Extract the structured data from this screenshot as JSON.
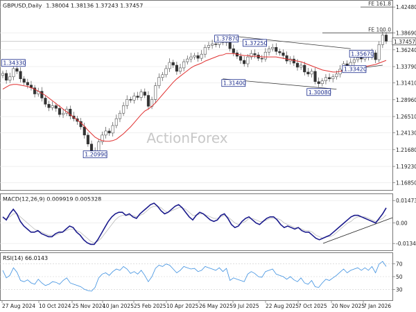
{
  "chart_data": [
    {
      "type": "candlestick",
      "title": "GBPUSD,Daily",
      "ohlc": "1.38004 1.38136 1.37243 1.37457",
      "watermark": "ActionForex",
      "yticks": [
        "1.42480",
        "1.38690",
        "1.36240",
        "1.33790",
        "1.31410",
        "1.28960",
        "1.26510",
        "1.24130",
        "1.21680",
        "1.19230",
        "1.16850"
      ],
      "last_price": "1.37457",
      "fib_labels": [
        {
          "text": "FE 161.8",
          "value": 1.4248
        },
        {
          "text": "FE 100.0",
          "value": 1.3869
        }
      ],
      "xticks": [
        "27 Aug 2024",
        "10 Oct 2024",
        "25 Nov 2024",
        "10 Jan 2025",
        "25 Feb 2025",
        "10 Apr 2025",
        "26 May 2025",
        "9 Jul 2025",
        "22 Aug 2025",
        "7 Oct 2025",
        "20 Nov 2025",
        "7 Jan 2026"
      ],
      "price_labels": [
        {
          "text": "1.34330",
          "value": 1.3433
        },
        {
          "text": "1.20990",
          "value": 1.2099
        },
        {
          "text": "1.37870",
          "value": 1.3787
        },
        {
          "text": "1.37250",
          "value": 1.3725
        },
        {
          "text": "1.31400",
          "value": 1.314
        },
        {
          "text": "1.30080",
          "value": 1.3008
        },
        {
          "text": "1.35670",
          "value": 1.3567
        },
        {
          "text": "1.33420",
          "value": 1.3342
        }
      ],
      "ylim": [
        1.16,
        1.432
      ],
      "series": [
        {
          "name": "close",
          "values": [
            1.328,
            1.318,
            1.323,
            1.335,
            1.331,
            1.32,
            1.315,
            1.311,
            1.307,
            1.298,
            1.302,
            1.292,
            1.283,
            1.278,
            1.281,
            1.277,
            1.268,
            1.27,
            1.276,
            1.266,
            1.262,
            1.258,
            1.25,
            1.238,
            1.225,
            1.214,
            1.21,
            1.228,
            1.238,
            1.244,
            1.241,
            1.252,
            1.262,
            1.27,
            1.281,
            1.29,
            1.289,
            1.295,
            1.293,
            1.301,
            1.296,
            1.28,
            1.29,
            1.31,
            1.322,
            1.326,
            1.335,
            1.344,
            1.34,
            1.331,
            1.336,
            1.345,
            1.349,
            1.352,
            1.354,
            1.35,
            1.356,
            1.366,
            1.369,
            1.371,
            1.37,
            1.376,
            1.373,
            1.38,
            1.364,
            1.358,
            1.353,
            1.347,
            1.342,
            1.352,
            1.357,
            1.355,
            1.35,
            1.349,
            1.359,
            1.364,
            1.366,
            1.36,
            1.358,
            1.354,
            1.346,
            1.349,
            1.343,
            1.337,
            1.34,
            1.33,
            1.327,
            1.331,
            1.316,
            1.313,
            1.317,
            1.322,
            1.32,
            1.323,
            1.327,
            1.334,
            1.342,
            1.338,
            1.344,
            1.348,
            1.351,
            1.349,
            1.354,
            1.352,
            1.358,
            1.348,
            1.37,
            1.384,
            1.375
          ]
        },
        {
          "name": "ma",
          "values": [
            1.305,
            1.308,
            1.311,
            1.312,
            1.312,
            1.311,
            1.31,
            1.309,
            1.307,
            1.305,
            1.302,
            1.299,
            1.296,
            1.292,
            1.288,
            1.284,
            1.28,
            1.276,
            1.272,
            1.268,
            1.264,
            1.26,
            1.256,
            1.251,
            1.245,
            1.24,
            1.235,
            1.232,
            1.23,
            1.229,
            1.229,
            1.23,
            1.232,
            1.236,
            1.24,
            1.245,
            1.25,
            1.256,
            1.262,
            1.268,
            1.273,
            1.276,
            1.28,
            1.285,
            1.291,
            1.297,
            1.303,
            1.309,
            1.315,
            1.32,
            1.324,
            1.328,
            1.332,
            1.336,
            1.339,
            1.341,
            1.343,
            1.346,
            1.348,
            1.35,
            1.352,
            1.354,
            1.355,
            1.357,
            1.357,
            1.357,
            1.356,
            1.355,
            1.354,
            1.354,
            1.353,
            1.353,
            1.353,
            1.352,
            1.352,
            1.352,
            1.352,
            1.352,
            1.351,
            1.35,
            1.349,
            1.348,
            1.347,
            1.346,
            1.345,
            1.343,
            1.341,
            1.339,
            1.337,
            1.335,
            1.333,
            1.332,
            1.331,
            1.33,
            1.33,
            1.331,
            1.332,
            1.333,
            1.334,
            1.335,
            1.336,
            1.337,
            1.338,
            1.339,
            1.34,
            1.341,
            1.343,
            1.345,
            1.347
          ]
        }
      ]
    },
    {
      "type": "line",
      "title": "MACD(12,26,9) 0.009919 0.005328",
      "yticks": [
        "0.014734",
        "0.00",
        "-0.013442"
      ],
      "ylim": [
        -0.017,
        0.018
      ],
      "series": [
        {
          "name": "macd",
          "values": [
            0.004,
            0.002,
            0.006,
            0.009,
            0.006,
            0.001,
            -0.002,
            -0.004,
            -0.006,
            -0.006,
            -0.005,
            -0.007,
            -0.008,
            -0.009,
            -0.009,
            -0.007,
            -0.006,
            -0.006,
            -0.004,
            -0.002,
            -0.003,
            -0.006,
            -0.008,
            -0.011,
            -0.013,
            -0.014,
            -0.014,
            -0.011,
            -0.007,
            -0.003,
            0.001,
            0.004,
            0.006,
            0.007,
            0.007,
            0.005,
            0.006,
            0.004,
            0.003,
            0.006,
            0.008,
            0.01,
            0.012,
            0.013,
            0.011,
            0.008,
            0.006,
            0.007,
            0.009,
            0.011,
            0.012,
            0.01,
            0.007,
            0.004,
            0.002,
            0.005,
            0.007,
            0.006,
            0.004,
            0.002,
            0.001,
            0.002,
            0.005,
            0.006,
            0.003,
            -0.001,
            -0.003,
            -0.002,
            0.001,
            0.003,
            0.004,
            0.002,
            0.0,
            -0.001,
            0.001,
            0.003,
            0.004,
            0.004,
            0.002,
            -0.001,
            -0.003,
            -0.002,
            -0.003,
            -0.004,
            -0.003,
            -0.005,
            -0.006,
            -0.006,
            -0.008,
            -0.01,
            -0.011,
            -0.01,
            -0.009,
            -0.008,
            -0.006,
            -0.004,
            -0.002,
            0.0,
            0.002,
            0.004,
            0.005,
            0.005,
            0.004,
            0.003,
            0.002,
            0.001,
            0.0,
            0.003,
            0.006,
            0.0099
          ]
        },
        {
          "name": "signal",
          "values": [
            0.003,
            0.003,
            0.004,
            0.006,
            0.006,
            0.004,
            0.002,
            0.0,
            -0.002,
            -0.004,
            -0.005,
            -0.006,
            -0.007,
            -0.008,
            -0.008,
            -0.008,
            -0.007,
            -0.006,
            -0.005,
            -0.004,
            -0.004,
            -0.005,
            -0.006,
            -0.008,
            -0.01,
            -0.012,
            -0.013,
            -0.012,
            -0.01,
            -0.007,
            -0.004,
            -0.001,
            0.002,
            0.004,
            0.005,
            0.005,
            0.005,
            0.005,
            0.004,
            0.005,
            0.006,
            0.008,
            0.01,
            0.011,
            0.011,
            0.01,
            0.008,
            0.007,
            0.008,
            0.009,
            0.01,
            0.01,
            0.009,
            0.007,
            0.005,
            0.005,
            0.006,
            0.006,
            0.005,
            0.004,
            0.003,
            0.003,
            0.004,
            0.005,
            0.004,
            0.002,
            0.0,
            -0.001,
            0.0,
            0.001,
            0.003,
            0.003,
            0.002,
            0.001,
            0.001,
            0.002,
            0.003,
            0.003,
            0.003,
            0.002,
            0.0,
            -0.001,
            -0.002,
            -0.003,
            -0.003,
            -0.004,
            -0.005,
            -0.005,
            -0.006,
            -0.008,
            -0.009,
            -0.01,
            -0.009,
            -0.009,
            -0.008,
            -0.006,
            -0.004,
            -0.002,
            0.0,
            0.001,
            0.003,
            0.004,
            0.004,
            0.004,
            0.003,
            0.002,
            0.001,
            0.002,
            0.003,
            0.0053
          ]
        }
      ]
    },
    {
      "type": "line",
      "title": "RSI(14) 66.0143",
      "yticks": [
        "70",
        "50",
        "30"
      ],
      "ylim": [
        15,
        85
      ],
      "series": [
        {
          "name": "rsi",
          "values": [
            60,
            48,
            52,
            64,
            57,
            44,
            42,
            45,
            40,
            38,
            46,
            40,
            36,
            38,
            42,
            41,
            38,
            44,
            48,
            40,
            38,
            36,
            34,
            30,
            28,
            27,
            33,
            48,
            54,
            56,
            52,
            58,
            62,
            60,
            66,
            62,
            55,
            58,
            54,
            60,
            52,
            42,
            50,
            63,
            68,
            66,
            70,
            68,
            62,
            56,
            60,
            66,
            64,
            62,
            63,
            58,
            60,
            66,
            64,
            62,
            60,
            64,
            58,
            63,
            44,
            48,
            46,
            44,
            42,
            54,
            58,
            55,
            50,
            49,
            58,
            60,
            62,
            54,
            52,
            50,
            46,
            50,
            45,
            42,
            48,
            40,
            38,
            44,
            34,
            33,
            40,
            46,
            44,
            48,
            52,
            57,
            62,
            56,
            60,
            62,
            64,
            60,
            64,
            60,
            66,
            56,
            70,
            74,
            66
          ]
        }
      ]
    }
  ]
}
